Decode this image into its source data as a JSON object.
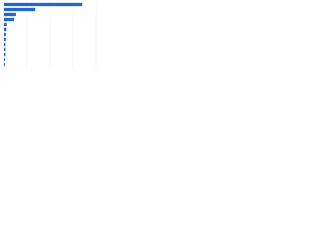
{
  "chart_data": {
    "type": "bar",
    "orientation": "horizontal",
    "categories": [
      null,
      null,
      null,
      null,
      null,
      null,
      null,
      null,
      null,
      null,
      null,
      null,
      null
    ],
    "values": [
      85,
      34,
      13,
      11,
      3,
      2.5,
      2,
      2,
      1.5,
      1.5,
      1.5,
      1,
      1
    ],
    "color": "#2366d1",
    "xlim": [
      0,
      100
    ],
    "xticks": [
      0,
      25,
      50,
      75,
      100
    ],
    "grid": true
  }
}
